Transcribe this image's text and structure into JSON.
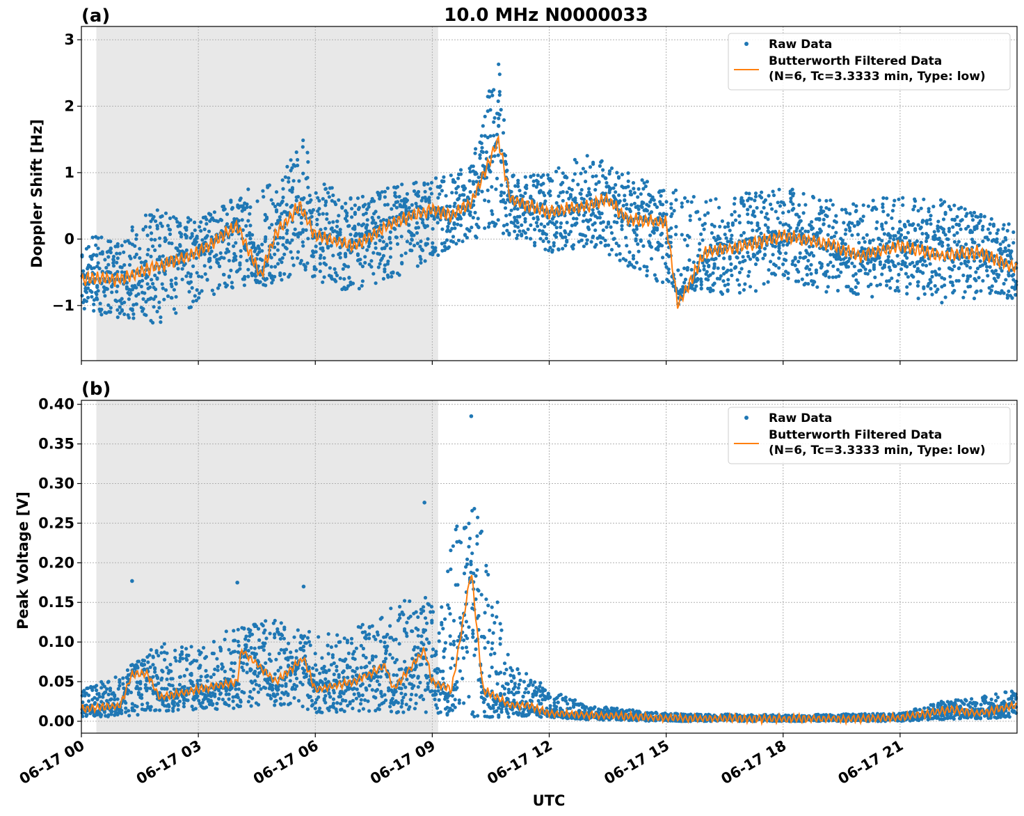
{
  "title": "10.0 MHz N0000033",
  "xlabel": "UTC",
  "x_ticks": [
    "06-17 00",
    "06-17 03",
    "06-17 06",
    "06-17 09",
    "06-17 12",
    "06-17 15",
    "06-17 18",
    "06-17 21"
  ],
  "x_range": [
    "06-17 00:00",
    "06-18 00:00"
  ],
  "shaded_interval": [
    "06-17 00:23",
    "06-17 09:09"
  ],
  "colors": {
    "raw": "#1f77b4",
    "filtered": "#ff7f0e",
    "shade": "#e8e8e8",
    "grid": "#b0b0b0"
  },
  "legend": {
    "raw": "Raw Data",
    "filtered_line1": "Butterworth Filtered Data",
    "filtered_line2": "(N=6, Tc=3.3333 min, Type: low)",
    "placement": "top-right"
  },
  "chart_data": [
    {
      "panel": "(a)",
      "type": "scatter",
      "ylabel": "Doppler Shift [Hz]",
      "ylim": [
        -1.83,
        3.2
      ],
      "y_ticks": [
        -1,
        0,
        1,
        2,
        3
      ],
      "y_tick_labels": [
        "−1",
        "0",
        "1",
        "2",
        "3"
      ],
      "grid": true,
      "series": [
        {
          "name": "Butterworth Filtered Data\n(N=6, Tc=3.3333 min, Type: low)",
          "x_hours": [
            0,
            1,
            2,
            2.5,
            3,
            4,
            4.6,
            5,
            5.6,
            6,
            7,
            8,
            9,
            9.5,
            10,
            10.7,
            11,
            12,
            13,
            13.5,
            14,
            15,
            15.3,
            16,
            17,
            18,
            19,
            20,
            21,
            22,
            23,
            24
          ],
          "y": [
            -0.6,
            -0.6,
            -0.4,
            -0.3,
            -0.2,
            0.2,
            -0.55,
            0.1,
            0.5,
            0.05,
            -0.1,
            0.25,
            0.45,
            0.35,
            0.55,
            1.5,
            0.6,
            0.4,
            0.5,
            0.6,
            0.3,
            0.25,
            -1.0,
            -0.2,
            -0.1,
            0.05,
            -0.05,
            -0.25,
            -0.1,
            -0.25,
            -0.2,
            -0.45
          ]
        },
        {
          "name": "Raw Data",
          "envelope_x_hours": [
            0,
            1,
            2,
            3,
            4,
            5,
            5.7,
            6,
            7,
            8,
            9,
            10,
            10.7,
            11,
            12,
            13,
            14,
            15,
            16,
            17,
            18,
            19,
            20,
            21,
            22,
            23,
            24
          ],
          "envelope_low": [
            -1.1,
            -1.2,
            -1.3,
            -1.0,
            -0.7,
            -0.7,
            -0.6,
            -0.7,
            -0.8,
            -0.6,
            -0.3,
            0.0,
            0.1,
            0.0,
            -0.2,
            -0.2,
            -0.4,
            -0.7,
            -0.8,
            -0.9,
            -0.6,
            -0.8,
            -0.9,
            -0.8,
            -1.0,
            -0.9,
            -0.9
          ],
          "envelope_high": [
            0.0,
            0.1,
            0.5,
            0.3,
            0.7,
            0.9,
            1.6,
            0.9,
            0.6,
            0.8,
            0.9,
            1.1,
            2.9,
            1.0,
            1.0,
            1.3,
            1.0,
            0.8,
            0.6,
            0.7,
            0.8,
            0.6,
            0.6,
            0.7,
            0.6,
            0.4,
            0.2
          ]
        }
      ]
    },
    {
      "panel": "(b)",
      "type": "scatter",
      "ylabel": "Peak Voltage [V]",
      "ylim": [
        -0.015,
        0.405
      ],
      "y_ticks": [
        0.0,
        0.05,
        0.1,
        0.15,
        0.2,
        0.25,
        0.3,
        0.35,
        0.4
      ],
      "y_tick_labels": [
        "0.00",
        "0.05",
        "0.10",
        "0.15",
        "0.20",
        "0.25",
        "0.30",
        "0.35",
        "0.40"
      ],
      "grid": true,
      "series": [
        {
          "name": "Butterworth Filtered Data\n(N=6, Tc=3.3333 min, Type: low)",
          "x_hours": [
            0,
            1,
            1.3,
            1.7,
            2,
            3,
            4,
            4.1,
            5,
            5.7,
            6,
            7,
            7.8,
            8,
            8.8,
            9,
            9.5,
            10,
            10.3,
            11,
            11.5,
            12,
            13,
            14,
            15,
            18,
            21,
            22.3,
            23,
            24
          ],
          "y": [
            0.015,
            0.02,
            0.06,
            0.06,
            0.03,
            0.04,
            0.05,
            0.09,
            0.05,
            0.08,
            0.04,
            0.05,
            0.07,
            0.04,
            0.09,
            0.05,
            0.04,
            0.19,
            0.04,
            0.02,
            0.02,
            0.01,
            0.008,
            0.006,
            0.004,
            0.003,
            0.004,
            0.015,
            0.01,
            0.02
          ]
        },
        {
          "name": "Raw Data",
          "envelope_x_hours": [
            0,
            1,
            2,
            3,
            4,
            5,
            6,
            7,
            8,
            9,
            10,
            11,
            12,
            13,
            14,
            15,
            18,
            21,
            22,
            23,
            24
          ],
          "envelope_low": [
            0.005,
            0.005,
            0.01,
            0.015,
            0.015,
            0.02,
            0.01,
            0.01,
            0.01,
            0.01,
            0.005,
            0.005,
            0.005,
            0.002,
            0.001,
            0.0,
            0.0,
            0.0,
            0.002,
            0.003,
            0.005
          ],
          "envelope_high": [
            0.04,
            0.06,
            0.1,
            0.1,
            0.12,
            0.13,
            0.11,
            0.12,
            0.15,
            0.16,
            0.3,
            0.08,
            0.04,
            0.02,
            0.015,
            0.01,
            0.008,
            0.01,
            0.025,
            0.03,
            0.04
          ],
          "peaks": [
            [
              1.3,
              0.177
            ],
            [
              5.7,
              0.17
            ],
            [
              4.0,
              0.175
            ],
            [
              8.8,
              0.276
            ],
            [
              10.0,
              0.385
            ]
          ]
        }
      ]
    }
  ]
}
